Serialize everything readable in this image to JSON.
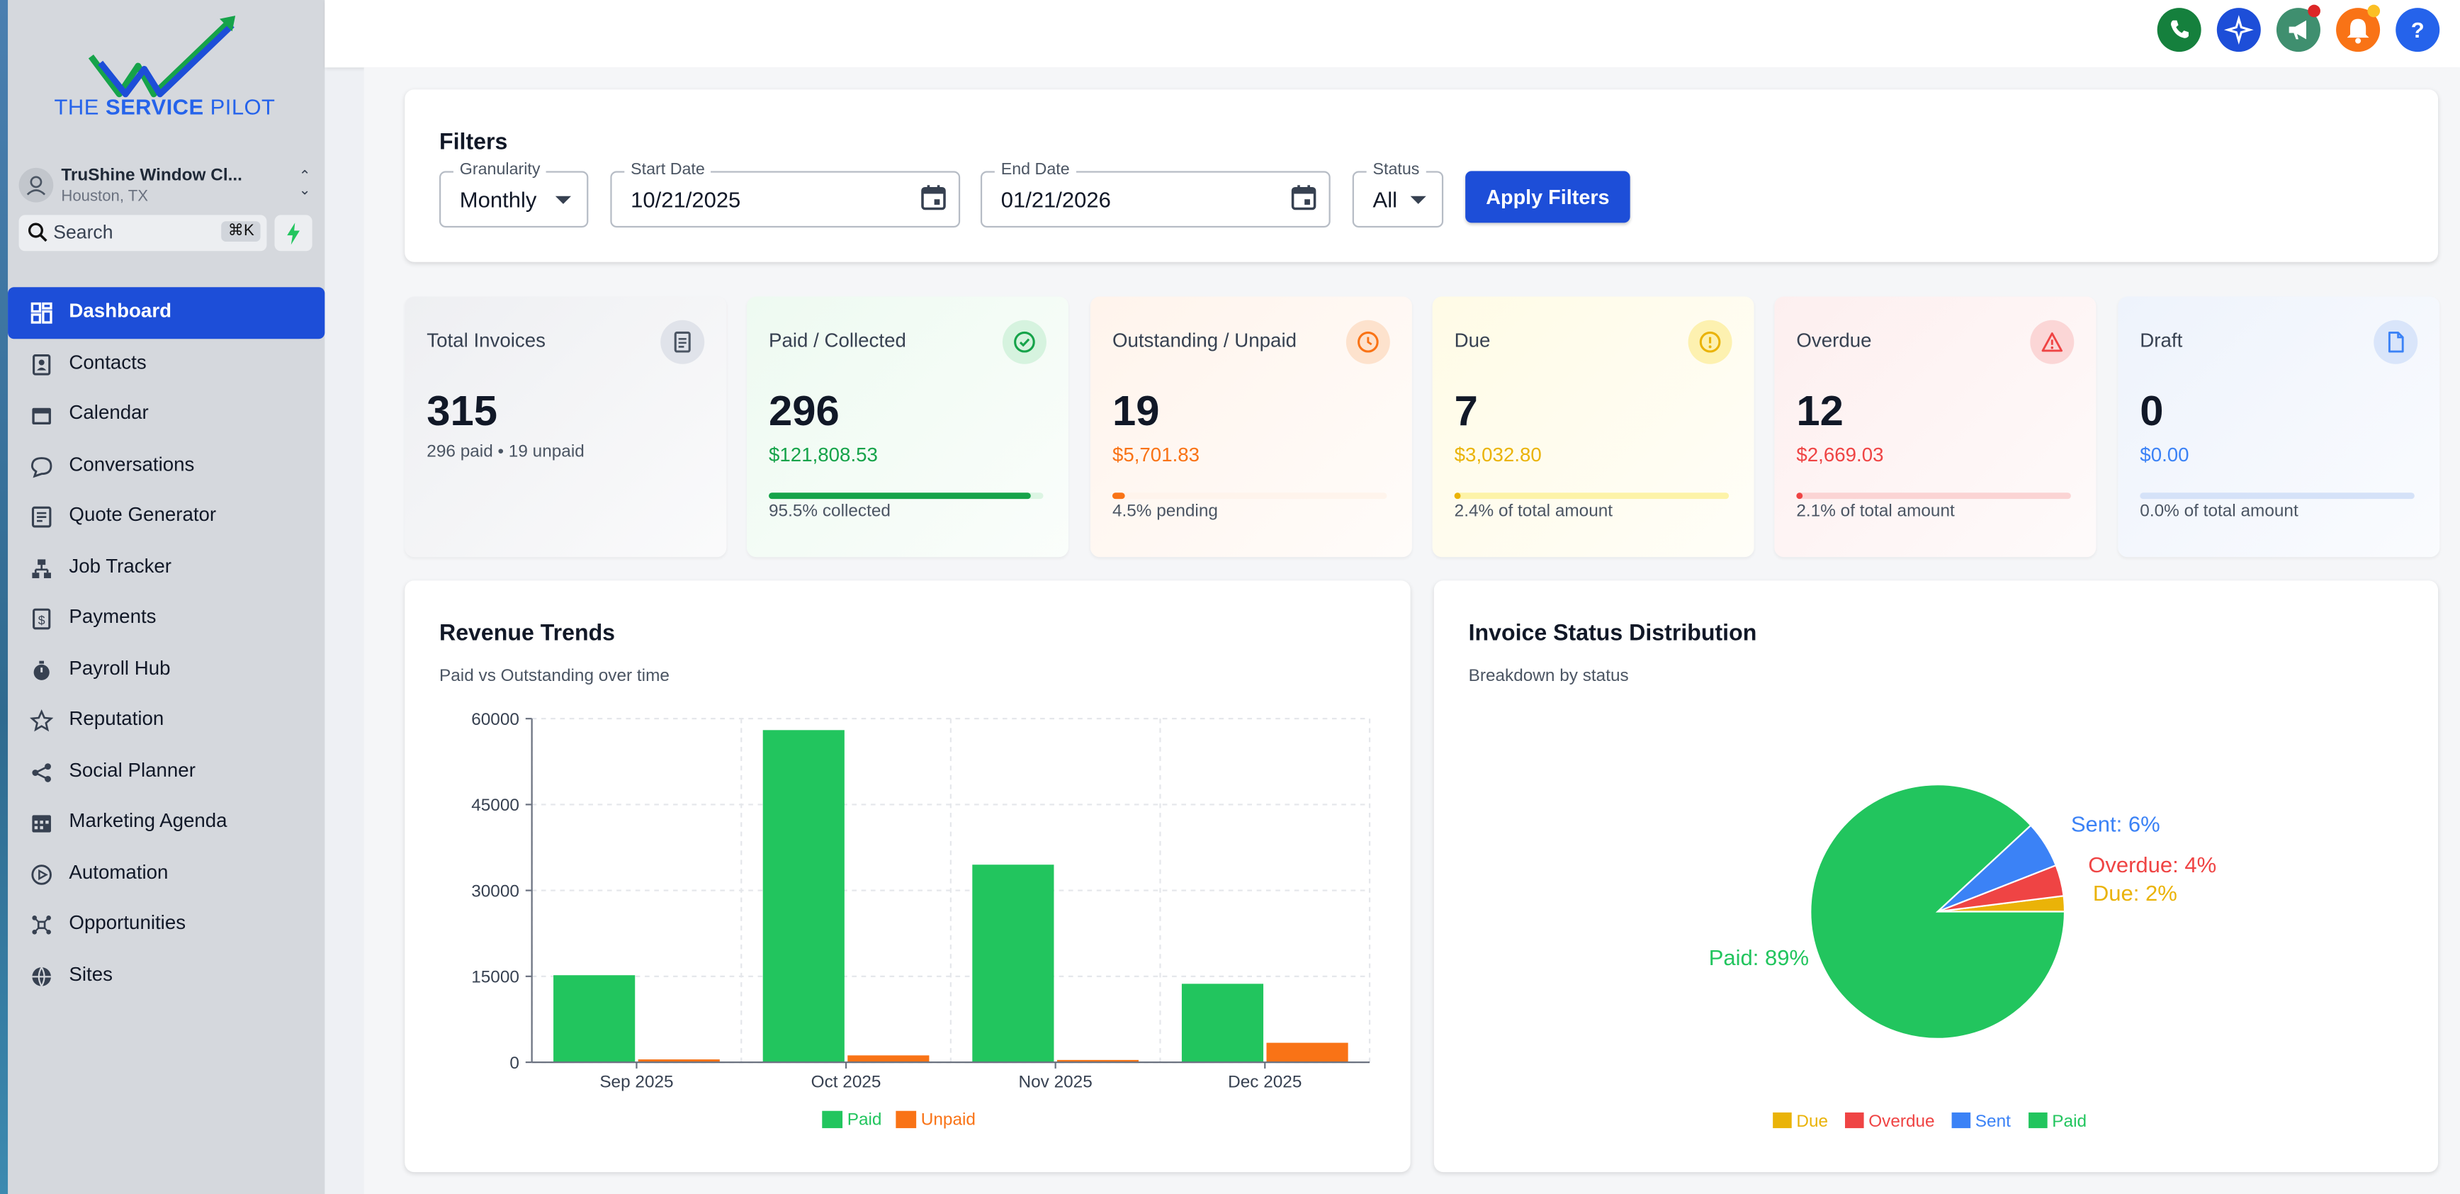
{
  "brand": {
    "prefix": "THE ",
    "bold": "SERVICE",
    "suffix": " PILOT"
  },
  "account": {
    "name": "TruShine Window Cl...",
    "location": "Houston, TX"
  },
  "search": {
    "placeholder": "Search",
    "shortcut": "⌘K"
  },
  "nav": [
    {
      "label": "Dashboard",
      "icon": "dashboard-icon",
      "active": true
    },
    {
      "label": "Contacts",
      "icon": "contacts-icon"
    },
    {
      "label": "Calendar",
      "icon": "calendar-icon"
    },
    {
      "label": "Conversations",
      "icon": "chat-bubble-icon"
    },
    {
      "label": "Quote Generator",
      "icon": "quote-icon"
    },
    {
      "label": "Job Tracker",
      "icon": "job-tracker-icon"
    },
    {
      "label": "Payments",
      "icon": "payments-icon"
    },
    {
      "label": "Payroll Hub",
      "icon": "stopwatch-icon"
    },
    {
      "label": "Reputation",
      "icon": "star-icon"
    },
    {
      "label": "Social Planner",
      "icon": "share-icon"
    },
    {
      "label": "Marketing Agenda",
      "icon": "agenda-icon"
    },
    {
      "label": "Automation",
      "icon": "automation-icon"
    },
    {
      "label": "Opportunities",
      "icon": "opportunities-icon"
    },
    {
      "label": "Sites",
      "icon": "globe-icon"
    }
  ],
  "topbar_icons": [
    {
      "name": "phone-icon",
      "color": "#15803d"
    },
    {
      "name": "sparkle-icon",
      "color": "#1d4ed8"
    },
    {
      "name": "megaphone-icon",
      "color": "#3f8f6f"
    },
    {
      "name": "bell-icon",
      "color": "#f97316"
    },
    {
      "name": "help-icon",
      "color": "#2563eb"
    }
  ],
  "filters": {
    "title": "Filters",
    "granularity": {
      "label": "Granularity",
      "value": "Monthly"
    },
    "start_date": {
      "label": "Start Date",
      "value": "10/21/2025"
    },
    "end_date": {
      "label": "End Date",
      "value": "01/21/2026"
    },
    "status": {
      "label": "Status",
      "value": "All"
    },
    "apply_label": "Apply Filters"
  },
  "stats": [
    {
      "title": "Total Invoices",
      "value": "315",
      "detail": "296 paid • 19 unpaid",
      "icon": "document-icon",
      "color": "#4b5563",
      "bg": "#eeeff2",
      "badge_bg": "#e0e3ea"
    },
    {
      "title": "Paid / Collected",
      "value": "296",
      "amount": "$121,808.53",
      "footer": "95.5% collected",
      "progress": 0.955,
      "icon": "check-circle-icon",
      "color": "#16a34a",
      "bg": "#eefaf1",
      "badge_bg": "#d6f3df",
      "track": "#dcf5e3"
    },
    {
      "title": "Outstanding / Unpaid",
      "value": "19",
      "amount": "$5,701.83",
      "footer": "4.5% pending",
      "progress": 0.045,
      "icon": "clock-icon",
      "color": "#f97316",
      "bg": "#fff4ec",
      "badge_bg": "#fde2cd",
      "track": "#fff4ec"
    },
    {
      "title": "Due",
      "value": "7",
      "amount": "$3,032.80",
      "footer": "2.4% of total amount",
      "progress": 0.024,
      "icon": "alert-circle-icon",
      "color": "#eab308",
      "bg": "#fffbe6",
      "badge_bg": "#fdf1b0",
      "track": "#fdf3a8"
    },
    {
      "title": "Overdue",
      "value": "12",
      "amount": "$2,669.03",
      "footer": "2.1% of total amount",
      "progress": 0.021,
      "icon": "warning-triangle-icon",
      "color": "#ef4444",
      "bg": "#fdefef",
      "badge_bg": "#fbd6d6",
      "track": "#fbd4d4"
    },
    {
      "title": "Draft",
      "value": "0",
      "amount": "$0.00",
      "footer": "0.0% of total amount",
      "progress": 0.0,
      "icon": "file-icon",
      "color": "#3b82f6",
      "bg": "#eef3fc",
      "badge_bg": "#d9e5fa",
      "track": "#d5e2f8"
    }
  ],
  "revenue": {
    "title": "Revenue Trends",
    "subtitle": "Paid vs Outstanding over time"
  },
  "distribution": {
    "title": "Invoice Status Distribution",
    "subtitle": "Breakdown by status"
  },
  "chart_data": [
    {
      "type": "bar",
      "title": "Revenue Trends",
      "subtitle": "Paid vs Outstanding over time",
      "categories": [
        "Sep 2025",
        "Oct 2025",
        "Nov 2025",
        "Dec 2025"
      ],
      "series": [
        {
          "name": "Paid",
          "color": "#22c55e",
          "values": [
            15200,
            58000,
            34500,
            13700
          ]
        },
        {
          "name": "Unpaid",
          "color": "#f97316",
          "values": [
            500,
            1200,
            400,
            3400
          ]
        }
      ],
      "yticks": [
        0,
        15000,
        30000,
        45000,
        60000
      ],
      "ylim": [
        0,
        60000
      ],
      "grid": true,
      "legend": "bottom"
    },
    {
      "type": "pie",
      "title": "Invoice Status Distribution",
      "subtitle": "Breakdown by status",
      "slices": [
        {
          "name": "Due",
          "value": 2,
          "label": "Due: 2%",
          "color": "#eab308"
        },
        {
          "name": "Overdue",
          "value": 4,
          "label": "Overdue: 4%",
          "color": "#ef4444"
        },
        {
          "name": "Sent",
          "value": 6,
          "label": "Sent: 6%",
          "color": "#3b82f6"
        },
        {
          "name": "Paid",
          "value": 89,
          "label": "Paid: 89%",
          "color": "#22c55e"
        }
      ],
      "legend": "bottom"
    }
  ]
}
